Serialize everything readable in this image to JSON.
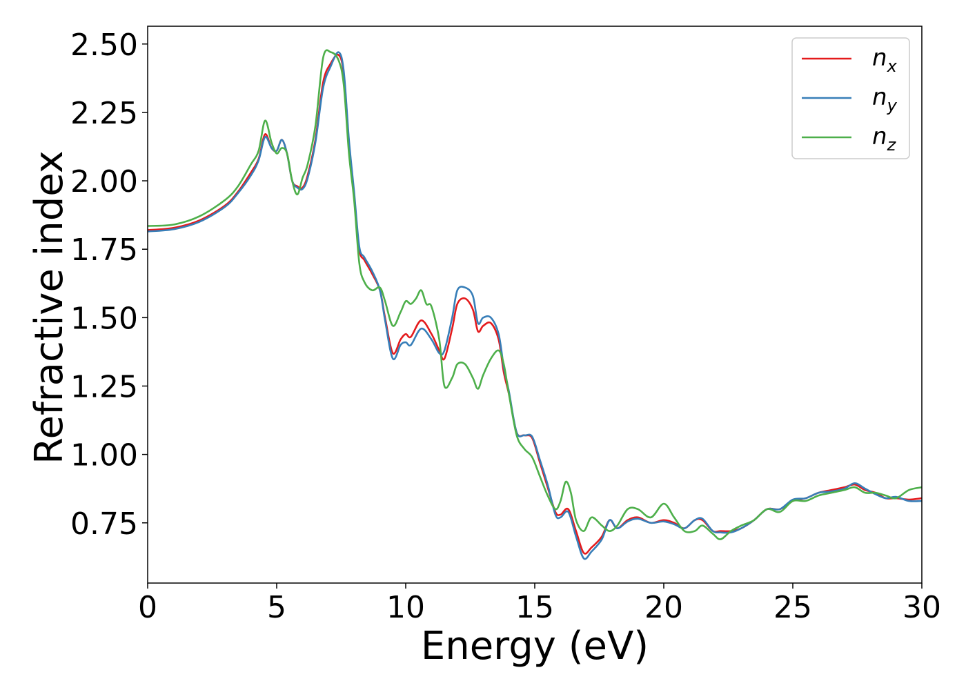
{
  "chart_data": {
    "type": "line",
    "xlabel": "Energy (eV)",
    "ylabel": "Refractive index",
    "xlim": [
      0,
      30
    ],
    "ylim": [
      0.53,
      2.565
    ],
    "xticks": [
      0,
      5,
      10,
      15,
      20,
      25,
      30
    ],
    "xtick_labels": [
      "0",
      "5",
      "10",
      "15",
      "20",
      "25",
      "30"
    ],
    "yticks": [
      0.75,
      1.0,
      1.25,
      1.5,
      1.75,
      2.0,
      2.25,
      2.5
    ],
    "ytick_labels": [
      "0.75",
      "1.00",
      "1.25",
      "1.50",
      "1.75",
      "2.00",
      "2.25",
      "2.50"
    ],
    "grid": false,
    "legend_position": "top-right",
    "series": [
      {
        "name": "n_x",
        "label_base": "n",
        "label_sub": "x",
        "color": "#e41a1c",
        "x": [
          0,
          1,
          2,
          3,
          3.5,
          4,
          4.3,
          4.55,
          4.8,
          5.0,
          5.2,
          5.4,
          5.6,
          5.8,
          6.0,
          6.2,
          6.5,
          6.8,
          7.1,
          7.4,
          7.6,
          7.8,
          8.0,
          8.2,
          8.4,
          8.7,
          9.0,
          9.2,
          9.5,
          9.8,
          10.0,
          10.2,
          10.6,
          11.0,
          11.3,
          11.5,
          11.8,
          12.0,
          12.3,
          12.6,
          12.8,
          13.0,
          13.3,
          13.6,
          13.8,
          14.0,
          14.3,
          14.6,
          14.9,
          15.2,
          15.5,
          15.8,
          16.0,
          16.3,
          16.6,
          16.9,
          17.2,
          17.6,
          17.9,
          18.2,
          18.6,
          19.0,
          19.5,
          20.0,
          20.4,
          20.8,
          21.2,
          21.5,
          21.9,
          22.2,
          22.6,
          23.0,
          23.5,
          24.0,
          24.5,
          25.0,
          25.5,
          26.0,
          26.5,
          27.0,
          27.4,
          27.8,
          28.2,
          28.6,
          29.0,
          29.5,
          30.0
        ],
        "y": [
          1.82,
          1.828,
          1.855,
          1.91,
          1.96,
          2.03,
          2.08,
          2.17,
          2.12,
          2.11,
          2.15,
          2.1,
          2.0,
          1.98,
          1.975,
          2.02,
          2.15,
          2.36,
          2.43,
          2.46,
          2.39,
          2.14,
          1.95,
          1.75,
          1.71,
          1.66,
          1.6,
          1.5,
          1.37,
          1.42,
          1.44,
          1.43,
          1.49,
          1.44,
          1.38,
          1.35,
          1.46,
          1.55,
          1.57,
          1.53,
          1.45,
          1.47,
          1.48,
          1.42,
          1.3,
          1.22,
          1.08,
          1.07,
          1.06,
          0.97,
          0.88,
          0.79,
          0.78,
          0.8,
          0.72,
          0.64,
          0.66,
          0.7,
          0.76,
          0.73,
          0.76,
          0.77,
          0.75,
          0.76,
          0.75,
          0.73,
          0.76,
          0.76,
          0.72,
          0.72,
          0.72,
          0.73,
          0.76,
          0.8,
          0.8,
          0.83,
          0.84,
          0.86,
          0.87,
          0.88,
          0.89,
          0.87,
          0.86,
          0.84,
          0.84,
          0.835,
          0.84
        ]
      },
      {
        "name": "n_y",
        "label_base": "n",
        "label_sub": "y",
        "color": "#377eb8",
        "x": [
          0,
          1,
          2,
          3,
          3.5,
          4,
          4.3,
          4.55,
          4.8,
          5.0,
          5.2,
          5.4,
          5.6,
          5.8,
          6.0,
          6.2,
          6.5,
          6.8,
          7.1,
          7.4,
          7.6,
          7.8,
          8.0,
          8.2,
          8.4,
          8.7,
          9.0,
          9.2,
          9.5,
          9.8,
          10.0,
          10.2,
          10.6,
          11.0,
          11.3,
          11.5,
          11.8,
          12.0,
          12.3,
          12.6,
          12.8,
          13.0,
          13.3,
          13.6,
          13.8,
          14.0,
          14.3,
          14.6,
          14.9,
          15.2,
          15.5,
          15.8,
          16.0,
          16.3,
          16.6,
          16.9,
          17.2,
          17.6,
          17.9,
          18.2,
          18.6,
          19.0,
          19.5,
          20.0,
          20.4,
          20.8,
          21.2,
          21.5,
          21.9,
          22.2,
          22.6,
          23.0,
          23.5,
          24.0,
          24.5,
          25.0,
          25.5,
          26.0,
          26.5,
          27.0,
          27.4,
          27.8,
          28.2,
          28.6,
          29.0,
          29.5,
          30.0
        ],
        "y": [
          1.815,
          1.823,
          1.85,
          1.905,
          1.955,
          2.02,
          2.075,
          2.16,
          2.12,
          2.11,
          2.15,
          2.1,
          2.0,
          1.975,
          1.97,
          2.01,
          2.14,
          2.34,
          2.42,
          2.47,
          2.4,
          2.15,
          1.96,
          1.76,
          1.72,
          1.67,
          1.6,
          1.49,
          1.35,
          1.4,
          1.41,
          1.4,
          1.46,
          1.42,
          1.37,
          1.38,
          1.5,
          1.6,
          1.61,
          1.58,
          1.48,
          1.5,
          1.5,
          1.44,
          1.32,
          1.23,
          1.08,
          1.07,
          1.065,
          0.98,
          0.89,
          0.78,
          0.77,
          0.79,
          0.7,
          0.62,
          0.645,
          0.69,
          0.76,
          0.73,
          0.755,
          0.765,
          0.75,
          0.755,
          0.745,
          0.73,
          0.76,
          0.765,
          0.72,
          0.715,
          0.715,
          0.73,
          0.76,
          0.8,
          0.8,
          0.835,
          0.84,
          0.86,
          0.865,
          0.875,
          0.895,
          0.875,
          0.855,
          0.84,
          0.845,
          0.83,
          0.83
        ]
      },
      {
        "name": "n_z",
        "label_base": "n",
        "label_sub": "z",
        "color": "#4daf4a",
        "x": [
          0,
          1,
          2,
          3,
          3.5,
          4,
          4.3,
          4.55,
          4.8,
          5.0,
          5.2,
          5.4,
          5.6,
          5.8,
          6.0,
          6.2,
          6.5,
          6.8,
          7.1,
          7.4,
          7.6,
          7.8,
          8.0,
          8.2,
          8.4,
          8.7,
          9.0,
          9.2,
          9.5,
          9.8,
          10.0,
          10.2,
          10.4,
          10.6,
          10.8,
          11.0,
          11.3,
          11.5,
          11.8,
          12.0,
          12.3,
          12.6,
          12.8,
          13.0,
          13.3,
          13.6,
          13.8,
          14.0,
          14.3,
          14.6,
          14.9,
          15.2,
          15.5,
          15.8,
          16.0,
          16.2,
          16.4,
          16.6,
          16.9,
          17.2,
          17.6,
          17.9,
          18.2,
          18.6,
          19.0,
          19.5,
          20.0,
          20.4,
          20.8,
          21.2,
          21.5,
          21.9,
          22.2,
          22.6,
          23.0,
          23.5,
          24.0,
          24.5,
          25.0,
          25.5,
          26.0,
          26.5,
          27.0,
          27.4,
          27.8,
          28.2,
          28.6,
          29.0,
          29.5,
          30.0
        ],
        "y": [
          1.835,
          1.84,
          1.87,
          1.93,
          1.98,
          2.06,
          2.11,
          2.22,
          2.14,
          2.1,
          2.12,
          2.1,
          2.0,
          1.95,
          2.01,
          2.06,
          2.2,
          2.45,
          2.47,
          2.44,
          2.35,
          2.1,
          1.93,
          1.7,
          1.63,
          1.6,
          1.61,
          1.56,
          1.47,
          1.52,
          1.56,
          1.55,
          1.57,
          1.6,
          1.55,
          1.54,
          1.42,
          1.25,
          1.28,
          1.33,
          1.33,
          1.28,
          1.24,
          1.29,
          1.35,
          1.38,
          1.33,
          1.22,
          1.07,
          1.02,
          0.99,
          0.92,
          0.85,
          0.8,
          0.83,
          0.9,
          0.86,
          0.76,
          0.72,
          0.77,
          0.74,
          0.72,
          0.74,
          0.8,
          0.8,
          0.77,
          0.82,
          0.77,
          0.72,
          0.72,
          0.74,
          0.71,
          0.69,
          0.72,
          0.74,
          0.76,
          0.8,
          0.79,
          0.83,
          0.83,
          0.85,
          0.86,
          0.87,
          0.88,
          0.86,
          0.86,
          0.85,
          0.84,
          0.87,
          0.88
        ]
      }
    ]
  }
}
